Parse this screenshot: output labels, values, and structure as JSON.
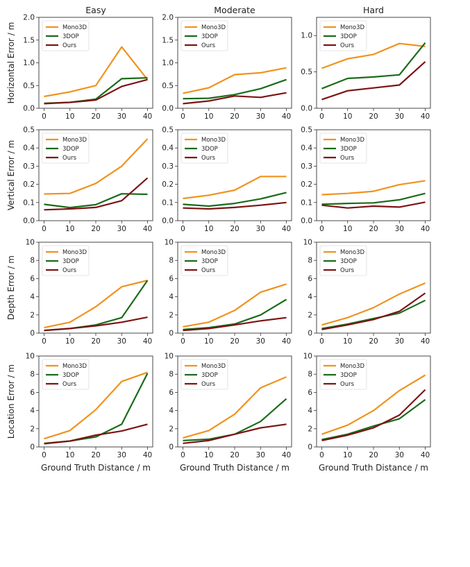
{
  "figure": {
    "column_titles": [
      "Easy",
      "Moderate",
      "Hard"
    ],
    "row_ylabels": [
      "Horizontal Error / m",
      "Vertical Error / m",
      "Depth Error / m",
      "Location Error / m"
    ],
    "xlabel": "Ground Truth Distance / m",
    "legend": [
      "Mono3D",
      "3DOP",
      "Ours"
    ],
    "series_colors": {
      "Mono3D": "#f0921e",
      "3DOP": "#1a6b1a",
      "Ours": "#7d1414"
    }
  },
  "chart_data": [
    {
      "type": "line",
      "row": 0,
      "col": 0,
      "title": "Easy",
      "ylabel": "Horizontal Error / m",
      "xlabel": "",
      "x": [
        0,
        10,
        20,
        30,
        40
      ],
      "xticks": [
        0,
        10,
        20,
        30,
        40
      ],
      "ylim": [
        0,
        2.0
      ],
      "yticks": [
        "0.0",
        "0.5",
        "1.0",
        "1.5",
        "2.0"
      ],
      "ytick_values": [
        0,
        0.5,
        1.0,
        1.5,
        2.0
      ],
      "legend_position": "upper-left",
      "series": [
        {
          "name": "Mono3D",
          "values": [
            0.26,
            0.36,
            0.5,
            1.35,
            0.63
          ]
        },
        {
          "name": "3DOP",
          "values": [
            0.11,
            0.13,
            0.2,
            0.65,
            0.67
          ]
        },
        {
          "name": "Ours",
          "values": [
            0.1,
            0.13,
            0.18,
            0.48,
            0.63
          ]
        }
      ]
    },
    {
      "type": "line",
      "row": 0,
      "col": 1,
      "title": "Moderate",
      "ylabel": "",
      "xlabel": "",
      "x": [
        0,
        10,
        20,
        30,
        40
      ],
      "xticks": [
        0,
        10,
        20,
        30,
        40
      ],
      "ylim": [
        0,
        2.0
      ],
      "yticks": [
        "0.0",
        "0.5",
        "1.0",
        "1.5",
        "2.0"
      ],
      "ytick_values": [
        0,
        0.5,
        1.0,
        1.5,
        2.0
      ],
      "legend_position": "upper-left",
      "series": [
        {
          "name": "Mono3D",
          "values": [
            0.33,
            0.45,
            0.74,
            0.78,
            0.89
          ]
        },
        {
          "name": "3DOP",
          "values": [
            0.21,
            0.22,
            0.3,
            0.43,
            0.63
          ]
        },
        {
          "name": "Ours",
          "values": [
            0.1,
            0.16,
            0.27,
            0.24,
            0.34
          ]
        }
      ]
    },
    {
      "type": "line",
      "row": 0,
      "col": 2,
      "title": "Hard",
      "ylabel": "",
      "xlabel": "",
      "x": [
        0,
        10,
        20,
        30,
        40
      ],
      "xticks": [
        0,
        10,
        20,
        30,
        40
      ],
      "ylim": [
        0,
        1.25
      ],
      "yticks": [
        "0.0",
        "0.5",
        "1.0"
      ],
      "ytick_values": [
        0,
        0.5,
        1.0
      ],
      "legend_position": "upper-left",
      "series": [
        {
          "name": "Mono3D",
          "values": [
            0.55,
            0.68,
            0.74,
            0.89,
            0.85
          ]
        },
        {
          "name": "3DOP",
          "values": [
            0.27,
            0.41,
            0.43,
            0.46,
            0.9
          ]
        },
        {
          "name": "Ours",
          "values": [
            0.12,
            0.24,
            0.28,
            0.32,
            0.64
          ]
        }
      ]
    },
    {
      "type": "line",
      "row": 1,
      "col": 0,
      "title": "",
      "ylabel": "Vertical Error / m",
      "xlabel": "",
      "x": [
        0,
        10,
        20,
        30,
        40
      ],
      "xticks": [
        0,
        10,
        20,
        30,
        40
      ],
      "ylim": [
        0,
        0.5
      ],
      "yticks": [
        "0.0",
        "0.1",
        "0.2",
        "0.3",
        "0.4",
        "0.5"
      ],
      "ytick_values": [
        0,
        0.1,
        0.2,
        0.3,
        0.4,
        0.5
      ],
      "legend_position": "upper-left",
      "series": [
        {
          "name": "Mono3D",
          "values": [
            0.147,
            0.15,
            0.205,
            0.3,
            0.45
          ]
        },
        {
          "name": "3DOP",
          "values": [
            0.09,
            0.072,
            0.088,
            0.148,
            0.145
          ]
        },
        {
          "name": "Ours",
          "values": [
            0.06,
            0.065,
            0.073,
            0.11,
            0.235
          ]
        }
      ]
    },
    {
      "type": "line",
      "row": 1,
      "col": 1,
      "title": "",
      "ylabel": "",
      "xlabel": "",
      "x": [
        0,
        10,
        20,
        30,
        40
      ],
      "xticks": [
        0,
        10,
        20,
        30,
        40
      ],
      "ylim": [
        0,
        0.5
      ],
      "yticks": [
        "0.0",
        "0.1",
        "0.2",
        "0.3",
        "0.4",
        "0.5"
      ],
      "ytick_values": [
        0,
        0.1,
        0.2,
        0.3,
        0.4,
        0.5
      ],
      "legend_position": "upper-left",
      "series": [
        {
          "name": "Mono3D",
          "values": [
            0.122,
            0.14,
            0.168,
            0.243,
            0.243
          ]
        },
        {
          "name": "3DOP",
          "values": [
            0.09,
            0.08,
            0.095,
            0.12,
            0.155
          ]
        },
        {
          "name": "Ours",
          "values": [
            0.07,
            0.065,
            0.073,
            0.085,
            0.1
          ]
        }
      ]
    },
    {
      "type": "line",
      "row": 1,
      "col": 2,
      "title": "",
      "ylabel": "",
      "xlabel": "",
      "x": [
        0,
        10,
        20,
        30,
        40
      ],
      "xticks": [
        0,
        10,
        20,
        30,
        40
      ],
      "ylim": [
        0,
        0.5
      ],
      "yticks": [
        "0.0",
        "0.1",
        "0.2",
        "0.3",
        "0.4",
        "0.5"
      ],
      "ytick_values": [
        0,
        0.1,
        0.2,
        0.3,
        0.4,
        0.5
      ],
      "legend_position": "upper-left",
      "series": [
        {
          "name": "Mono3D",
          "values": [
            0.143,
            0.15,
            0.162,
            0.198,
            0.22
          ]
        },
        {
          "name": "3DOP",
          "values": [
            0.09,
            0.095,
            0.098,
            0.115,
            0.15
          ]
        },
        {
          "name": "Ours",
          "values": [
            0.085,
            0.07,
            0.08,
            0.075,
            0.102
          ]
        }
      ]
    },
    {
      "type": "line",
      "row": 2,
      "col": 0,
      "title": "",
      "ylabel": "Depth Error / m",
      "xlabel": "",
      "x": [
        0,
        10,
        20,
        30,
        40
      ],
      "xticks": [
        0,
        10,
        20,
        30,
        40
      ],
      "ylim": [
        0,
        10
      ],
      "yticks": [
        "0",
        "2",
        "4",
        "6",
        "8",
        "10"
      ],
      "ytick_values": [
        0,
        2,
        4,
        6,
        8,
        10
      ],
      "legend_position": "upper-left",
      "series": [
        {
          "name": "Mono3D",
          "values": [
            0.6,
            1.2,
            2.9,
            5.1,
            5.8
          ]
        },
        {
          "name": "3DOP",
          "values": [
            0.3,
            0.5,
            0.9,
            1.7,
            5.8
          ]
        },
        {
          "name": "Ours",
          "values": [
            0.3,
            0.5,
            0.8,
            1.2,
            1.75
          ]
        }
      ]
    },
    {
      "type": "line",
      "row": 2,
      "col": 1,
      "title": "",
      "ylabel": "",
      "xlabel": "",
      "x": [
        0,
        10,
        20,
        30,
        40
      ],
      "xticks": [
        0,
        10,
        20,
        30,
        40
      ],
      "ylim": [
        0,
        10
      ],
      "yticks": [
        "0",
        "2",
        "4",
        "6",
        "8",
        "10"
      ],
      "ytick_values": [
        0,
        2,
        4,
        6,
        8,
        10
      ],
      "legend_position": "upper-left",
      "series": [
        {
          "name": "Mono3D",
          "values": [
            0.7,
            1.2,
            2.5,
            4.5,
            5.4
          ]
        },
        {
          "name": "3DOP",
          "values": [
            0.4,
            0.6,
            1.0,
            2.0,
            3.7
          ]
        },
        {
          "name": "Ours",
          "values": [
            0.3,
            0.5,
            0.9,
            1.35,
            1.7
          ]
        }
      ]
    },
    {
      "type": "line",
      "row": 2,
      "col": 2,
      "title": "",
      "ylabel": "",
      "xlabel": "",
      "x": [
        0,
        10,
        20,
        30,
        40
      ],
      "xticks": [
        0,
        10,
        20,
        30,
        40
      ],
      "ylim": [
        0,
        10
      ],
      "yticks": [
        "0",
        "2",
        "4",
        "6",
        "8",
        "10"
      ],
      "ytick_values": [
        0,
        2,
        4,
        6,
        8,
        10
      ],
      "legend_position": "upper-left",
      "series": [
        {
          "name": "Mono3D",
          "values": [
            0.9,
            1.7,
            2.8,
            4.3,
            5.5
          ]
        },
        {
          "name": "3DOP",
          "values": [
            0.5,
            1.0,
            1.6,
            2.2,
            3.6
          ]
        },
        {
          "name": "Ours",
          "values": [
            0.4,
            0.9,
            1.5,
            2.4,
            4.4
          ]
        }
      ]
    },
    {
      "type": "line",
      "row": 3,
      "col": 0,
      "title": "",
      "ylabel": "Location Error / m",
      "xlabel": "Ground Truth Distance / m",
      "x": [
        0,
        10,
        20,
        30,
        40
      ],
      "xticks": [
        0,
        10,
        20,
        30,
        40
      ],
      "ylim": [
        0,
        10
      ],
      "yticks": [
        "0",
        "2",
        "4",
        "6",
        "8",
        "10"
      ],
      "ytick_values": [
        0,
        2,
        4,
        6,
        8,
        10
      ],
      "legend_position": "upper-left",
      "series": [
        {
          "name": "Mono3D",
          "values": [
            0.9,
            1.8,
            4.1,
            7.2,
            8.2
          ]
        },
        {
          "name": "3DOP",
          "values": [
            0.4,
            0.65,
            1.1,
            2.5,
            8.1
          ]
        },
        {
          "name": "Ours",
          "values": [
            0.35,
            0.65,
            1.3,
            1.75,
            2.5
          ]
        }
      ]
    },
    {
      "type": "line",
      "row": 3,
      "col": 1,
      "title": "",
      "ylabel": "",
      "xlabel": "Ground Truth Distance / m",
      "x": [
        0,
        10,
        20,
        30,
        40
      ],
      "xticks": [
        0,
        10,
        20,
        30,
        40
      ],
      "ylim": [
        0,
        10
      ],
      "yticks": [
        "0",
        "2",
        "4",
        "6",
        "8",
        "10"
      ],
      "ytick_values": [
        0,
        2,
        4,
        6,
        8,
        10
      ],
      "legend_position": "upper-left",
      "series": [
        {
          "name": "Mono3D",
          "values": [
            1.0,
            1.8,
            3.6,
            6.5,
            7.7
          ]
        },
        {
          "name": "3DOP",
          "values": [
            0.7,
            0.85,
            1.4,
            2.8,
            5.3
          ]
        },
        {
          "name": "Ours",
          "values": [
            0.4,
            0.7,
            1.4,
            2.1,
            2.5
          ]
        }
      ]
    },
    {
      "type": "line",
      "row": 3,
      "col": 2,
      "title": "",
      "ylabel": "",
      "xlabel": "Ground Truth Distance / m",
      "x": [
        0,
        10,
        20,
        30,
        40
      ],
      "xticks": [
        0,
        10,
        20,
        30,
        40
      ],
      "ylim": [
        0,
        10
      ],
      "yticks": [
        "0",
        "2",
        "4",
        "6",
        "8",
        "10"
      ],
      "ytick_values": [
        0,
        2,
        4,
        6,
        8,
        10
      ],
      "legend_position": "upper-left",
      "series": [
        {
          "name": "Mono3D",
          "values": [
            1.4,
            2.4,
            4.0,
            6.2,
            7.9
          ]
        },
        {
          "name": "3DOP",
          "values": [
            0.8,
            1.4,
            2.3,
            3.1,
            5.2
          ]
        },
        {
          "name": "Ours",
          "values": [
            0.7,
            1.3,
            2.1,
            3.5,
            6.3
          ]
        }
      ]
    }
  ]
}
